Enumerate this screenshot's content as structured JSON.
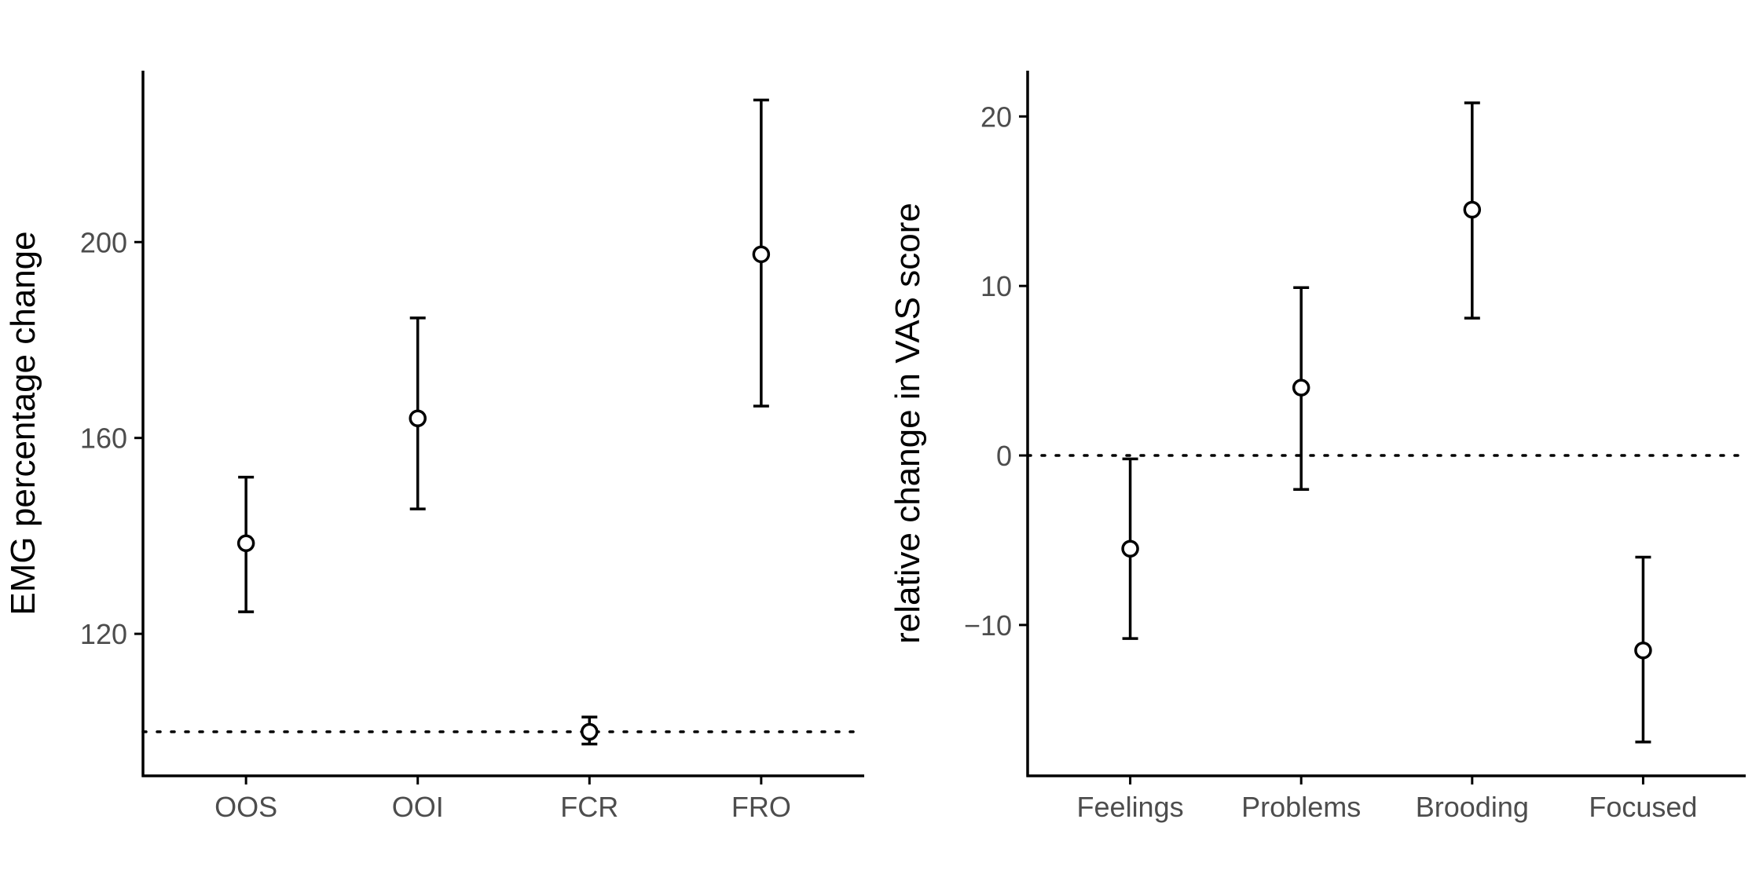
{
  "chart_data": [
    {
      "type": "scatter",
      "title": "",
      "xlabel": "",
      "ylabel": "EMG percentage change",
      "categories": [
        "OOS",
        "OOI",
        "FCR",
        "FRO"
      ],
      "values": [
        138.5,
        164,
        100,
        197.5
      ],
      "lower": [
        124.5,
        145.5,
        97.5,
        166.5
      ],
      "upper": [
        152,
        184.5,
        103,
        229
      ],
      "yticks": [
        120,
        160,
        200
      ],
      "ylim": [
        91,
        235
      ],
      "reference_line": 100,
      "grid": false,
      "legend": "none"
    },
    {
      "type": "scatter",
      "title": "",
      "xlabel": "",
      "ylabel": "relative change in VAS score",
      "categories": [
        "Feelings",
        "Problems",
        "Brooding",
        "Focused"
      ],
      "values": [
        -5.5,
        4,
        14.5,
        -11.5
      ],
      "lower": [
        -10.8,
        -2,
        8.1,
        -16.9
      ],
      "upper": [
        -0.2,
        9.9,
        20.8,
        -6
      ],
      "yticks": [
        -10,
        0,
        10,
        20
      ],
      "ylim": [
        -18.9,
        22.7
      ],
      "reference_line": 0,
      "grid": false,
      "legend": "none"
    }
  ]
}
